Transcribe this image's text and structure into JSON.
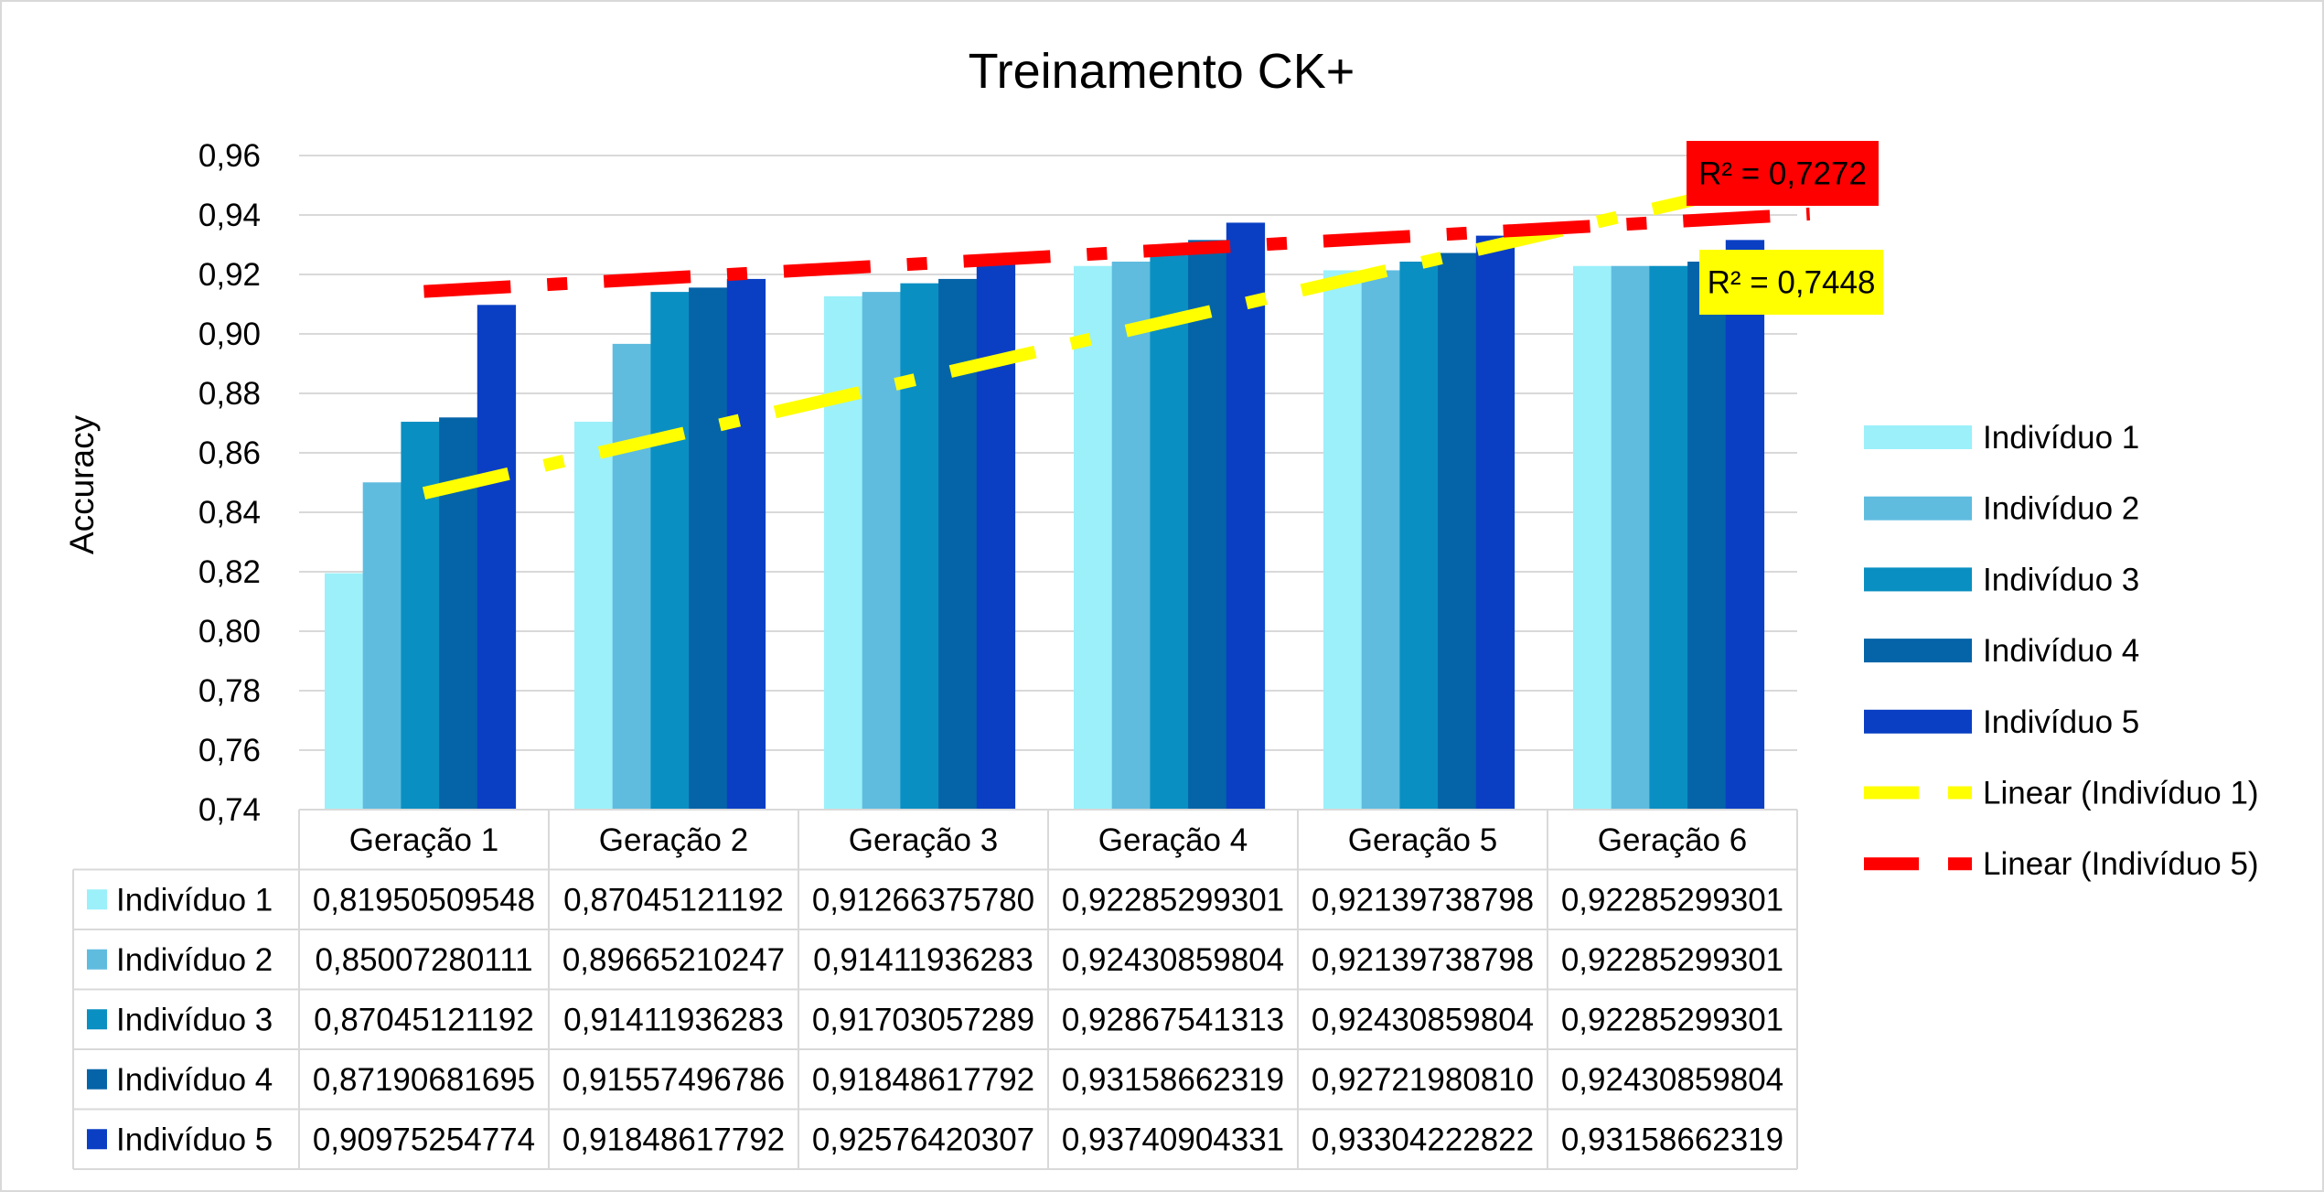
{
  "chart_data": {
    "type": "bar",
    "title": "Treinamento CK+",
    "xlabel": "",
    "ylabel": "Accuracy",
    "ylim": [
      0.74,
      0.96
    ],
    "yticks": [
      "0,96",
      "0,94",
      "0,92",
      "0,90",
      "0,88",
      "0,86",
      "0,84",
      "0,82",
      "0,80",
      "0,78",
      "0,76",
      "0,74"
    ],
    "grid": true,
    "legend_position": "right",
    "categories": [
      "Geração 1",
      "Geração 2",
      "Geração 3",
      "Geração 4",
      "Geração 5",
      "Geração 6"
    ],
    "series": [
      {
        "name": "Indivíduo 1",
        "color": "#9BF0FA",
        "values": [
          0.81950509548,
          0.87045121192,
          0.9126637578,
          0.92285299301,
          0.92139738798,
          0.92285299301
        ],
        "labels": [
          "0,81950509548",
          "0,87045121192",
          "0,91266375780",
          "0,92285299301",
          "0,92139738798",
          "0,92285299301"
        ]
      },
      {
        "name": "Indivíduo 2",
        "color": "#5FBCDF",
        "values": [
          0.85007280111,
          0.89665210247,
          0.91411936283,
          0.92430859804,
          0.92139738798,
          0.92285299301
        ],
        "labels": [
          "0,85007280111",
          "0,89665210247",
          "0,91411936283",
          "0,92430859804",
          "0,92139738798",
          "0,92285299301"
        ]
      },
      {
        "name": "Indivíduo 3",
        "color": "#0A8FC2",
        "values": [
          0.87045121192,
          0.91411936283,
          0.91703057289,
          0.92867541313,
          0.92430859804,
          0.92285299301
        ],
        "labels": [
          "0,87045121192",
          "0,91411936283",
          "0,91703057289",
          "0,92867541313",
          "0,92430859804",
          "0,92285299301"
        ]
      },
      {
        "name": "Indivíduo 4",
        "color": "#0564A8",
        "values": [
          0.87190681695,
          0.91557496786,
          0.91848617792,
          0.93158662319,
          0.9272198081,
          0.92430859804
        ],
        "labels": [
          "0,87190681695",
          "0,91557496786",
          "0,91848617792",
          "0,93158662319",
          "0,92721980810",
          "0,92430859804"
        ]
      },
      {
        "name": "Indivíduo 5",
        "color": "#0A3FC4",
        "values": [
          0.90975254774,
          0.91848617792,
          0.92576420307,
          0.93740904331,
          0.93304222822,
          0.93158662319
        ],
        "labels": [
          "0,90975254774",
          "0,91848617792",
          "0,92576420307",
          "0,93740904331",
          "0,93304222822",
          "0,93158662319"
        ]
      }
    ],
    "trendlines": [
      {
        "name": "Linear (Indivíduo 1)",
        "series_index": 0,
        "color": "#FFFF00",
        "r2_label": "R² = 0,7448",
        "r2_background": "#FFFF00"
      },
      {
        "name": "Linear (Indivíduo 5)",
        "series_index": 4,
        "color": "#FF0000",
        "r2_label": "R² = 0,7272",
        "r2_background": "#FF0000"
      }
    ]
  }
}
